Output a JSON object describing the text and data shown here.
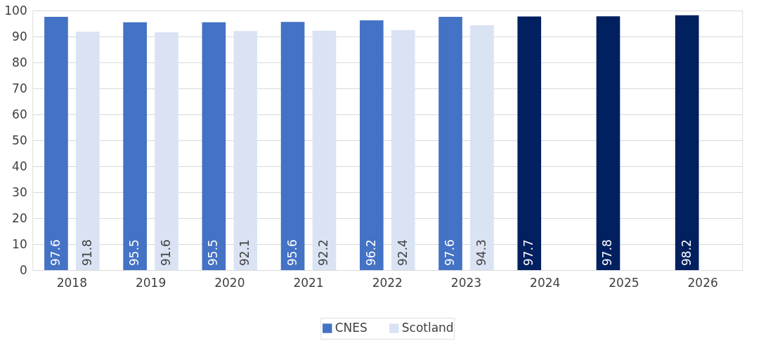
{
  "chart_data": {
    "type": "bar",
    "categories": [
      "2018",
      "2019",
      "2020",
      "2021",
      "2022",
      "2023",
      "2024",
      "2025",
      "2026"
    ],
    "series": [
      {
        "name": "CNES",
        "color": "#4472c4",
        "colors": [
          "#4472c4",
          "#4472c4",
          "#4472c4",
          "#4472c4",
          "#4472c4",
          "#4472c4",
          "#002060",
          "#002060",
          "#002060"
        ],
        "values": [
          97.6,
          95.5,
          95.5,
          95.6,
          96.2,
          97.6,
          97.7,
          97.8,
          98.2
        ]
      },
      {
        "name": "Scotland",
        "color": "#dae3f3",
        "values": [
          91.8,
          91.6,
          92.1,
          92.2,
          92.4,
          94.3,
          null,
          null,
          null
        ]
      }
    ],
    "ylim": [
      0,
      100
    ],
    "yticks": [
      0,
      10,
      20,
      30,
      40,
      50,
      60,
      70,
      80,
      90,
      100
    ],
    "grid": "y",
    "legend": "bottom",
    "data_labels": true
  }
}
